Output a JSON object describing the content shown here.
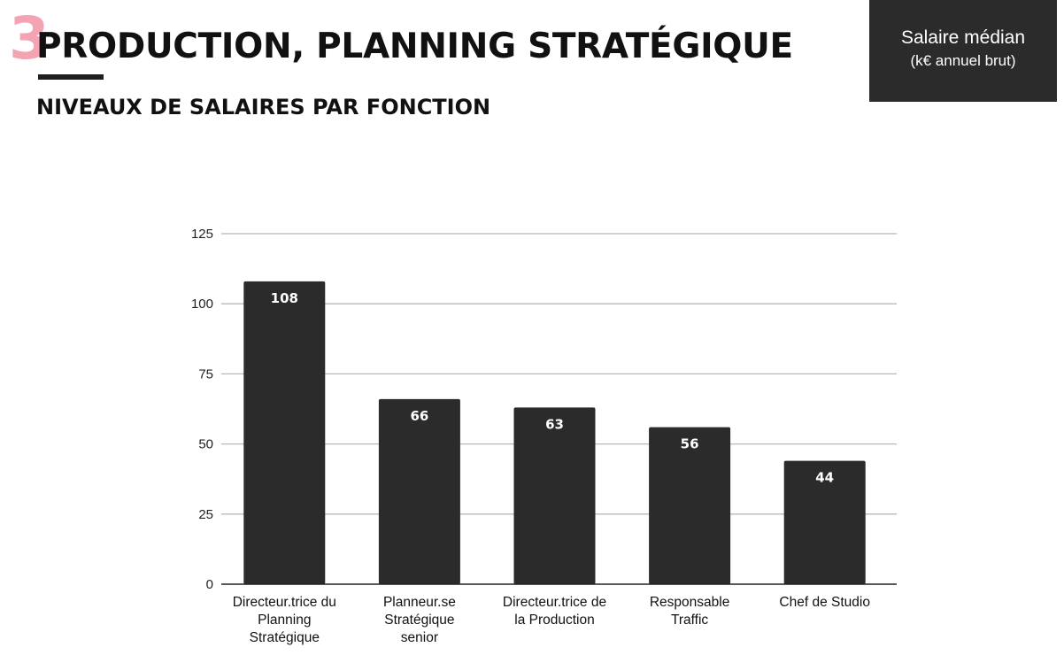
{
  "header": {
    "section_number": "3",
    "title": "PRODUCTION, PLANNING STRATÉGIQUE",
    "subtitle": "NIVEAUX DE SALAIRES PAR FONCTION"
  },
  "legend": {
    "line1": "Salaire médian",
    "line2": "(k€ annuel brut)"
  },
  "colors": {
    "accent": "#f4a3b2",
    "bar": "#2b2b2b",
    "legend_bg": "#2b2b2b",
    "grid": "#b8b8b8"
  },
  "chart_data": {
    "type": "bar",
    "title": "",
    "xlabel": "",
    "ylabel": "",
    "categories": [
      [
        "Directeur.trice du",
        "Planning",
        "Stratégique"
      ],
      [
        "Planneur.se",
        "Stratégique",
        "senior"
      ],
      [
        "Directeur.trice de",
        "la Production"
      ],
      [
        "Responsable",
        "Traffic"
      ],
      [
        "Chef de Studio"
      ]
    ],
    "series": [
      {
        "values": [
          108,
          66,
          63,
          56,
          44
        ]
      }
    ],
    "ylim": [
      0,
      125
    ],
    "yticks": [
      0,
      25,
      50,
      75,
      100,
      125
    ],
    "grid": true,
    "data_labels": true
  }
}
